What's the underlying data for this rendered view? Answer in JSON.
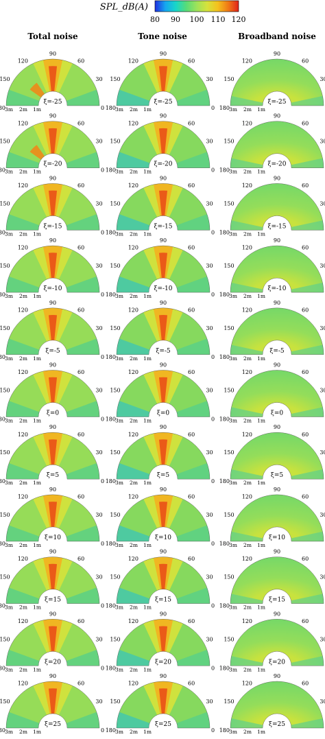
{
  "colorbar": {
    "title": "SPL_dB(A)",
    "ticks": [
      "80",
      "90",
      "100",
      "110",
      "120"
    ],
    "min": 80,
    "max": 120,
    "colors": [
      "#1f2fe0",
      "#16a7f0",
      "#18d6c8",
      "#58dc78",
      "#9ee25a",
      "#d6e23c",
      "#f4c21e",
      "#f07a16",
      "#e0221a"
    ]
  },
  "columns": [
    {
      "title": "Total noise",
      "key": "total"
    },
    {
      "title": "Tone noise",
      "key": "tone"
    },
    {
      "title": "Broadband noise",
      "key": "broadband"
    }
  ],
  "angle_labels": [
    "90",
    "120",
    "60",
    "150",
    "30",
    "180",
    "0"
  ],
  "radius_labels": [
    "3m",
    "2m",
    "1m"
  ],
  "rows": [
    {
      "label": "ξ=-25"
    },
    {
      "label": "ξ=-20"
    },
    {
      "label": "ξ=-15"
    },
    {
      "label": "ξ=-10"
    },
    {
      "label": "ξ=-5"
    },
    {
      "label": "ξ=0"
    },
    {
      "label": "ξ=5"
    },
    {
      "label": "ξ=10"
    },
    {
      "label": "ξ=15"
    },
    {
      "label": "ξ=20"
    },
    {
      "label": "ξ=25"
    }
  ],
  "chart_data": {
    "type": "heatmap",
    "description_kind": "polar half-annulus SPL contour maps",
    "quantity": "SPL_dB(A)",
    "color_range": [
      80,
      120
    ],
    "polar_angle_ticks_deg": [
      0,
      30,
      60,
      90,
      120,
      150,
      180
    ],
    "radius_ticks": [
      "1m",
      "2m",
      "3m"
    ],
    "row_parameter_values": [
      -25,
      -20,
      -15,
      -10,
      -5,
      0,
      5,
      10,
      15,
      20,
      25
    ],
    "panels": {
      "total": {
        "peak_dB": 118,
        "peak_angle_deg": 90,
        "background_dB": 100
      },
      "tone": {
        "peak_dB": 117,
        "peak_angle_deg": 90,
        "background_dB": 98
      },
      "broadband": {
        "peak_dB": 103,
        "peak_angle_deg": 90,
        "background_dB": 101
      }
    }
  }
}
